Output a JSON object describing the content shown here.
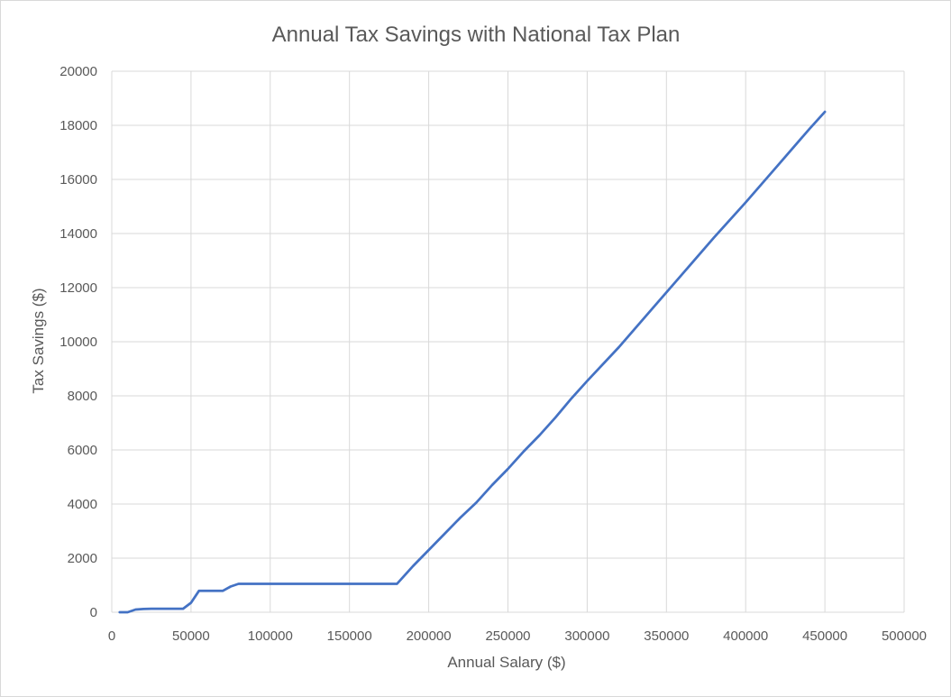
{
  "chart_data": {
    "type": "line",
    "title": "Annual Tax Savings with National Tax Plan",
    "xlabel": "Annual Salary ($)",
    "ylabel": "Tax Savings ($)",
    "xlim": [
      0,
      500000
    ],
    "ylim": [
      0,
      20000
    ],
    "x_ticks": [
      "0",
      "50000",
      "100000",
      "150000",
      "200000",
      "250000",
      "300000",
      "350000",
      "400000",
      "450000",
      "500000"
    ],
    "y_ticks": [
      "0",
      "2000",
      "4000",
      "6000",
      "8000",
      "10000",
      "12000",
      "14000",
      "16000",
      "18000",
      "20000"
    ],
    "grid": true,
    "legend": "none",
    "series_color": "#4472c4",
    "series": [
      {
        "x": [
          5000,
          10000,
          15000,
          20000,
          25000,
          30000,
          35000,
          40000,
          45000,
          50000,
          55000,
          60000,
          65000,
          70000,
          75000,
          80000,
          90000,
          100000,
          120000,
          140000,
          160000,
          180000,
          190000,
          200000,
          210000,
          220000,
          230000,
          240000,
          250000,
          260000,
          270000,
          280000,
          290000,
          300000,
          320000,
          340000,
          360000,
          380000,
          400000,
          420000,
          440000,
          450000
        ],
        "y": [
          0,
          0,
          100,
          120,
          130,
          130,
          130,
          130,
          130,
          350,
          790,
          790,
          790,
          790,
          950,
          1050,
          1050,
          1050,
          1050,
          1050,
          1050,
          1050,
          1700,
          2300,
          2900,
          3500,
          4050,
          4700,
          5300,
          5950,
          6550,
          7200,
          7900,
          8550,
          9800,
          11150,
          12500,
          13850,
          15150,
          16500,
          17850,
          18500
        ]
      }
    ]
  }
}
